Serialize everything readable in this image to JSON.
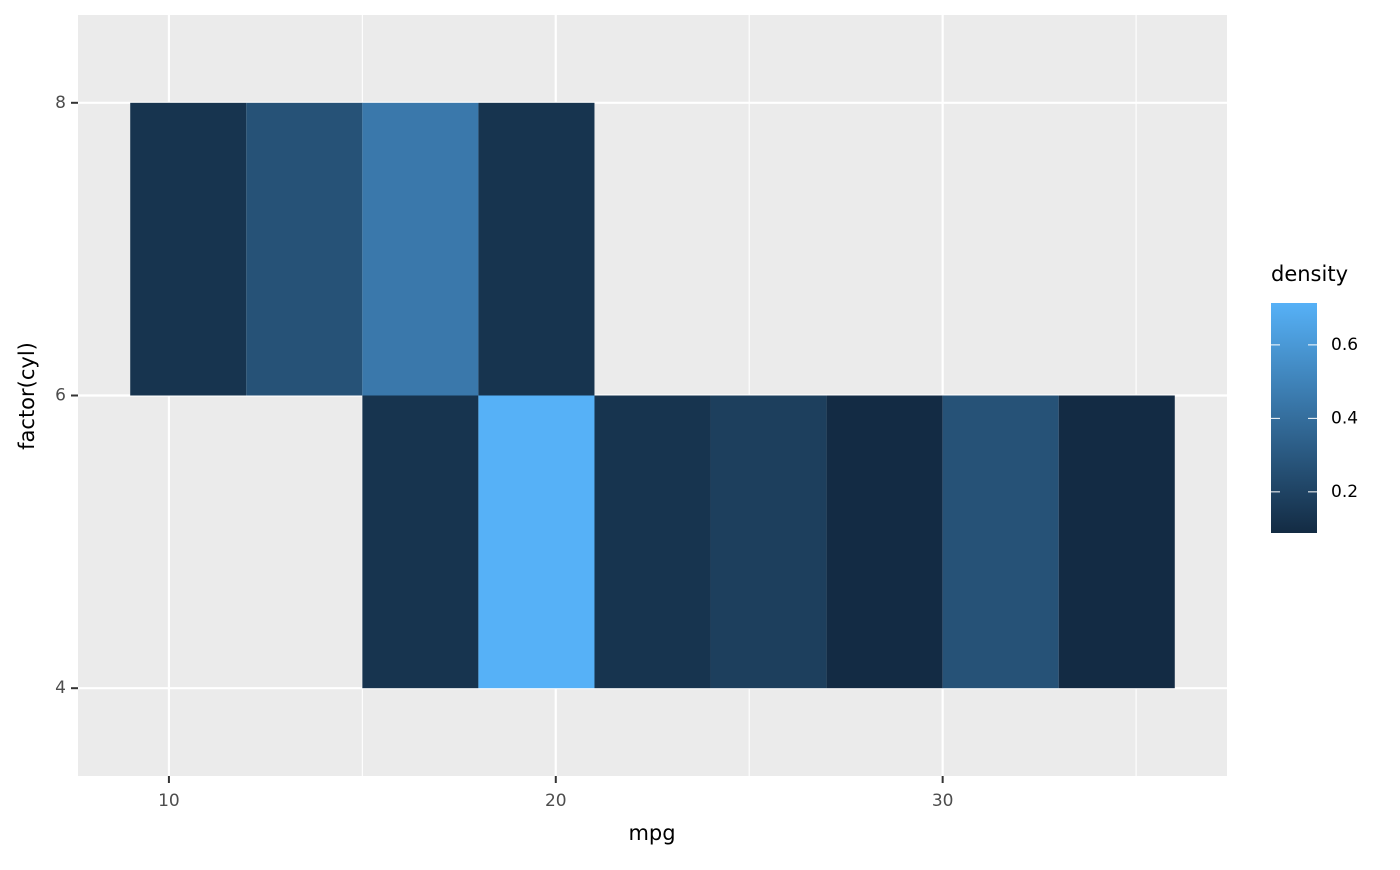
{
  "chart_data": {
    "type": "heatmap",
    "x_label": "mpg",
    "y_label": "factor(cyl)",
    "x_bins": [
      9,
      12,
      15,
      18,
      21,
      24,
      27,
      30,
      33,
      36
    ],
    "y_bins": [
      4,
      6,
      8
    ],
    "values": [
      [
        null,
        null,
        0.13,
        0.714,
        0.13,
        0.18,
        0.09,
        0.27,
        0.09
      ],
      [
        0.13,
        0.27,
        0.45,
        0.13,
        null,
        null,
        null,
        null,
        null
      ]
    ],
    "xlim": [
      7.65,
      37.35
    ],
    "xticks": [
      10,
      20,
      30
    ],
    "xminor": [
      15,
      25,
      35
    ],
    "ylim": [
      3.4,
      8.6
    ],
    "yticks": [
      4,
      6,
      8
    ],
    "legend_title": "density",
    "color_low": "#132B43",
    "color_high": "#56B1F7",
    "clim": [
      0.088,
      0.714
    ],
    "cticks": [
      0.2,
      0.4,
      0.6
    ],
    "panel_color": "#EBEBEB",
    "grid": true
  }
}
